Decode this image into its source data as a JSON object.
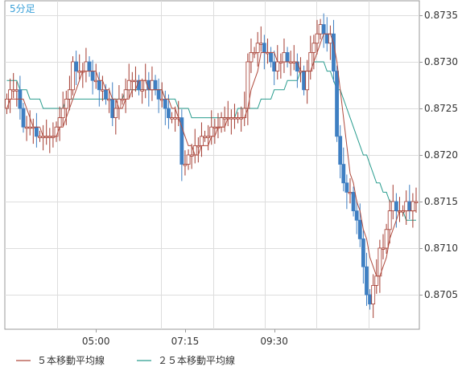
{
  "chart_data": {
    "type": "candlestick",
    "period_label": "5分足",
    "y_axis": {
      "ticks": [
        "0.8735",
        "0.8730",
        "0.8725",
        "0.8720",
        "0.8715",
        "0.8710",
        "0.8705"
      ],
      "tick_values": [
        0.8735,
        0.873,
        0.8725,
        0.872,
        0.8715,
        0.871,
        0.8705
      ],
      "range": [
        0.87,
        0.8736
      ]
    },
    "x_axis": {
      "ticks": [
        "05:00",
        "07:15",
        "09:30"
      ],
      "tick_bar_index": [
        27,
        54,
        81
      ]
    },
    "grid": true,
    "legend": [
      {
        "label": "５本移動平均線",
        "color": "#b04b3e"
      },
      {
        "label": "２５本移動平均線",
        "color": "#2a9d8f"
      }
    ],
    "colors": {
      "up_body": "#ffffff",
      "up_border": "#a33a2f",
      "down_body": "#3e7fc2",
      "down_border": "#3e7fc2",
      "wick": "#a33a2f",
      "grid": "#dddddd",
      "axis": "#999999",
      "period_label": "#3aa0d8"
    },
    "close": [
      0.8726,
      0.8727,
      0.8727,
      0.8727,
      0.8725,
      0.8723,
      0.8723,
      0.8723,
      0.8723,
      0.8722,
      0.8722,
      0.8722,
      0.8722,
      0.8722,
      0.8722,
      0.8723,
      0.8724,
      0.8725,
      0.8726,
      0.8727,
      0.873,
      0.8729,
      0.8729,
      0.8729,
      0.873,
      0.8729,
      0.8728,
      0.8728,
      0.8727,
      0.8727,
      0.8726,
      0.8726,
      0.8724,
      0.8725,
      0.8726,
      0.8726,
      0.8727,
      0.8728,
      0.8728,
      0.8728,
      0.8727,
      0.8727,
      0.8728,
      0.8727,
      0.8728,
      0.8727,
      0.8726,
      0.8726,
      0.8725,
      0.8724,
      0.8724,
      0.8724,
      0.8724,
      0.8719,
      0.8719,
      0.872,
      0.872,
      0.8721,
      0.8721,
      0.8722,
      0.8722,
      0.8722,
      0.8723,
      0.8723,
      0.8723,
      0.8724,
      0.8724,
      0.8724,
      0.8724,
      0.8724,
      0.8724,
      0.8724,
      0.8725,
      0.873,
      0.8731,
      0.8731,
      0.8732,
      0.8732,
      0.8731,
      0.8731,
      0.873,
      0.8729,
      0.873,
      0.873,
      0.8731,
      0.873,
      0.873,
      0.873,
      0.8729,
      0.8729,
      0.8727,
      0.8729,
      0.8731,
      0.8732,
      0.8733,
      0.8734,
      0.8733,
      0.8732,
      0.8733,
      0.8729,
      0.8722,
      0.8719,
      0.8717,
      0.8716,
      0.8716,
      0.8714,
      0.8713,
      0.8711,
      0.8708,
      0.8705,
      0.8704,
      0.8706,
      0.8707,
      0.871,
      0.871,
      0.8712,
      0.8714,
      0.8715,
      0.8714,
      0.8714,
      0.8714,
      0.8715,
      0.8714,
      0.8715,
      0.8715
    ],
    "ma5": [
      0.8725,
      0.8726,
      0.8726,
      0.8726,
      0.8726,
      0.8726,
      0.8725,
      0.8724,
      0.8723,
      0.8723,
      0.8723,
      0.8722,
      0.8722,
      0.8722,
      0.8722,
      0.8722,
      0.8723,
      0.8723,
      0.8724,
      0.8725,
      0.8726,
      0.8727,
      0.8728,
      0.8729,
      0.8729,
      0.8729,
      0.8729,
      0.8729,
      0.8728,
      0.8728,
      0.8727,
      0.8727,
      0.8726,
      0.8726,
      0.8725,
      0.8725,
      0.8726,
      0.8726,
      0.8727,
      0.8727,
      0.8728,
      0.8728,
      0.8728,
      0.8727,
      0.8727,
      0.8727,
      0.8727,
      0.8727,
      0.8726,
      0.8726,
      0.8725,
      0.8725,
      0.8724,
      0.8723,
      0.8722,
      0.8721,
      0.8721,
      0.872,
      0.872,
      0.8721,
      0.8721,
      0.8721,
      0.8722,
      0.8722,
      0.8723,
      0.8723,
      0.8723,
      0.8724,
      0.8724,
      0.8724,
      0.8724,
      0.8724,
      0.8724,
      0.8725,
      0.8727,
      0.8728,
      0.8729,
      0.8731,
      0.8731,
      0.8731,
      0.8731,
      0.8731,
      0.873,
      0.873,
      0.873,
      0.873,
      0.873,
      0.873,
      0.873,
      0.8729,
      0.8729,
      0.8729,
      0.8729,
      0.873,
      0.8731,
      0.8732,
      0.8733,
      0.8733,
      0.8733,
      0.8732,
      0.873,
      0.8727,
      0.8724,
      0.8721,
      0.8718,
      0.8717,
      0.8715,
      0.8714,
      0.8712,
      0.8711,
      0.8709,
      0.8708,
      0.8707,
      0.8707,
      0.8708,
      0.8709,
      0.8711,
      0.8712,
      0.8713,
      0.8714,
      0.8714,
      0.8714,
      0.8714,
      0.8714,
      0.8714
    ],
    "ma25": [
      0.8728,
      0.8728,
      0.8728,
      0.8728,
      0.8727,
      0.8727,
      0.8727,
      0.8726,
      0.8726,
      0.8726,
      0.8726,
      0.8725,
      0.8725,
      0.8725,
      0.8725,
      0.8725,
      0.8725,
      0.8725,
      0.8726,
      0.8726,
      0.8726,
      0.8726,
      0.8726,
      0.8726,
      0.8726,
      0.8726,
      0.8726,
      0.8726,
      0.8726,
      0.8726,
      0.8726,
      0.8726,
      0.8726,
      0.8726,
      0.8726,
      0.8726,
      0.8727,
      0.8727,
      0.8727,
      0.8727,
      0.8727,
      0.8727,
      0.8727,
      0.8727,
      0.8727,
      0.8727,
      0.8727,
      0.8727,
      0.8726,
      0.8726,
      0.8726,
      0.8726,
      0.8725,
      0.8725,
      0.8725,
      0.8725,
      0.8724,
      0.8724,
      0.8724,
      0.8724,
      0.8724,
      0.8724,
      0.8724,
      0.8724,
      0.8724,
      0.8724,
      0.8724,
      0.8724,
      0.8724,
      0.8724,
      0.8725,
      0.8725,
      0.8725,
      0.8725,
      0.8725,
      0.8725,
      0.8725,
      0.8726,
      0.8726,
      0.8726,
      0.8726,
      0.8727,
      0.8727,
      0.8727,
      0.8727,
      0.8728,
      0.8728,
      0.8728,
      0.8728,
      0.8729,
      0.8729,
      0.8729,
      0.8729,
      0.873,
      0.873,
      0.873,
      0.873,
      0.8729,
      0.8729,
      0.8728,
      0.8727,
      0.8727,
      0.8726,
      0.8725,
      0.8724,
      0.8723,
      0.8722,
      0.8721,
      0.872,
      0.872,
      0.8719,
      0.8718,
      0.8717,
      0.8717,
      0.8716,
      0.8716,
      0.8715,
      0.8715,
      0.8714,
      0.8714,
      0.8714,
      0.8713,
      0.8713,
      0.8713,
      0.8713
    ]
  }
}
